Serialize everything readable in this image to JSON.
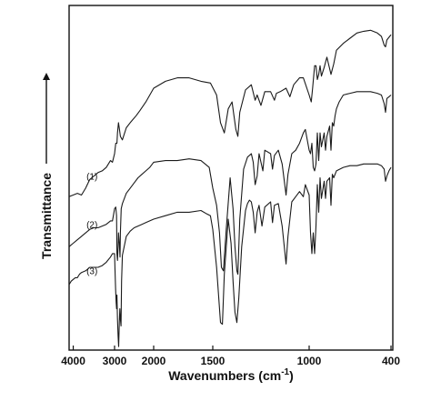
{
  "chart_data": {
    "type": "line",
    "title": "",
    "xlabel": "Wavenumbers (cm",
    "xlabel_superscript": "-1",
    "xlabel_suffix": ")",
    "ylabel": "Transmittance",
    "ylabel_arrow": "up",
    "x_reversed": true,
    "xlim": [
      4100,
      400
    ],
    "xticks": [
      4000,
      3000,
      2000,
      1500,
      1000,
      400
    ],
    "xtick_labels": [
      "4000",
      "3000",
      "2000",
      "1500",
      "1000",
      "400"
    ],
    "y_axis_ticks_labeled": false,
    "grid": false,
    "legend": "none",
    "series": [
      {
        "name": "(1)",
        "color": "#1a1a1a",
        "points": [
          [
            4100,
            0.555
          ],
          [
            3900,
            0.545
          ],
          [
            3800,
            0.55
          ],
          [
            3700,
            0.53
          ],
          [
            3600,
            0.505
          ],
          [
            3500,
            0.495
          ],
          [
            3400,
            0.485
          ],
          [
            3300,
            0.48
          ],
          [
            3200,
            0.47
          ],
          [
            3100,
            0.45
          ],
          [
            3050,
            0.455
          ],
          [
            3000,
            0.43
          ],
          [
            2970,
            0.4
          ],
          [
            2940,
            0.4
          ],
          [
            2925,
            0.37
          ],
          [
            2900,
            0.34
          ],
          [
            2875,
            0.36
          ],
          [
            2850,
            0.38
          ],
          [
            2800,
            0.39
          ],
          [
            2700,
            0.355
          ],
          [
            2600,
            0.34
          ],
          [
            2450,
            0.32
          ],
          [
            2350,
            0.305
          ],
          [
            2200,
            0.28
          ],
          [
            2000,
            0.24
          ],
          [
            1900,
            0.22
          ],
          [
            1800,
            0.21
          ],
          [
            1700,
            0.21
          ],
          [
            1650,
            0.215
          ],
          [
            1600,
            0.22
          ],
          [
            1520,
            0.225
          ],
          [
            1480,
            0.26
          ],
          [
            1460,
            0.34
          ],
          [
            1440,
            0.37
          ],
          [
            1420,
            0.3
          ],
          [
            1400,
            0.28
          ],
          [
            1380,
            0.36
          ],
          [
            1370,
            0.38
          ],
          [
            1360,
            0.31
          ],
          [
            1330,
            0.245
          ],
          [
            1300,
            0.23
          ],
          [
            1280,
            0.275
          ],
          [
            1270,
            0.26
          ],
          [
            1250,
            0.29
          ],
          [
            1230,
            0.25
          ],
          [
            1200,
            0.25
          ],
          [
            1180,
            0.275
          ],
          [
            1170,
            0.255
          ],
          [
            1150,
            0.25
          ],
          [
            1120,
            0.24
          ],
          [
            1100,
            0.265
          ],
          [
            1080,
            0.23
          ],
          [
            1050,
            0.21
          ],
          [
            1030,
            0.21
          ],
          [
            1000,
            0.26
          ],
          [
            985,
            0.28
          ],
          [
            975,
            0.24
          ],
          [
            960,
            0.175
          ],
          [
            950,
            0.175
          ],
          [
            940,
            0.215
          ],
          [
            930,
            0.2
          ],
          [
            920,
            0.175
          ],
          [
            910,
            0.205
          ],
          [
            890,
            0.18
          ],
          [
            870,
            0.15
          ],
          [
            840,
            0.2
          ],
          [
            820,
            0.17
          ],
          [
            800,
            0.13
          ],
          [
            750,
            0.11
          ],
          [
            700,
            0.095
          ],
          [
            650,
            0.08
          ],
          [
            600,
            0.075
          ],
          [
            550,
            0.072
          ],
          [
            500,
            0.08
          ],
          [
            470,
            0.09
          ],
          [
            450,
            0.115
          ],
          [
            440,
            0.12
          ],
          [
            430,
            0.1
          ],
          [
            410,
            0.09
          ],
          [
            400,
            0.085
          ]
        ]
      },
      {
        "name": "(2)",
        "color": "#1a1a1a",
        "points": [
          [
            4100,
            0.7
          ],
          [
            4000,
            0.69
          ],
          [
            3900,
            0.68
          ],
          [
            3800,
            0.67
          ],
          [
            3700,
            0.66
          ],
          [
            3600,
            0.65
          ],
          [
            3500,
            0.645
          ],
          [
            3400,
            0.645
          ],
          [
            3300,
            0.64
          ],
          [
            3200,
            0.635
          ],
          [
            3100,
            0.625
          ],
          [
            3050,
            0.625
          ],
          [
            3000,
            0.59
          ],
          [
            2970,
            0.585
          ],
          [
            2950,
            0.61
          ],
          [
            2940,
            0.72
          ],
          [
            2925,
            0.74
          ],
          [
            2910,
            0.7
          ],
          [
            2900,
            0.66
          ],
          [
            2880,
            0.69
          ],
          [
            2860,
            0.73
          ],
          [
            2850,
            0.66
          ],
          [
            2830,
            0.59
          ],
          [
            2800,
            0.575
          ],
          [
            2700,
            0.545
          ],
          [
            2600,
            0.53
          ],
          [
            2500,
            0.515
          ],
          [
            2400,
            0.5
          ],
          [
            2300,
            0.49
          ],
          [
            2200,
            0.48
          ],
          [
            2100,
            0.47
          ],
          [
            2000,
            0.455
          ],
          [
            1900,
            0.45
          ],
          [
            1800,
            0.45
          ],
          [
            1700,
            0.445
          ],
          [
            1600,
            0.45
          ],
          [
            1530,
            0.47
          ],
          [
            1500,
            0.53
          ],
          [
            1480,
            0.58
          ],
          [
            1465,
            0.66
          ],
          [
            1455,
            0.76
          ],
          [
            1445,
            0.77
          ],
          [
            1430,
            0.65
          ],
          [
            1410,
            0.5
          ],
          [
            1395,
            0.59
          ],
          [
            1385,
            0.7
          ],
          [
            1375,
            0.77
          ],
          [
            1370,
            0.78
          ],
          [
            1360,
            0.62
          ],
          [
            1340,
            0.475
          ],
          [
            1320,
            0.44
          ],
          [
            1300,
            0.43
          ],
          [
            1290,
            0.455
          ],
          [
            1280,
            0.52
          ],
          [
            1270,
            0.495
          ],
          [
            1260,
            0.43
          ],
          [
            1240,
            0.48
          ],
          [
            1230,
            0.42
          ],
          [
            1200,
            0.43
          ],
          [
            1190,
            0.475
          ],
          [
            1180,
            0.435
          ],
          [
            1160,
            0.42
          ],
          [
            1140,
            0.46
          ],
          [
            1120,
            0.55
          ],
          [
            1110,
            0.49
          ],
          [
            1090,
            0.43
          ],
          [
            1070,
            0.42
          ],
          [
            1050,
            0.4
          ],
          [
            1030,
            0.37
          ],
          [
            1020,
            0.36
          ],
          [
            1000,
            0.42
          ],
          [
            990,
            0.43
          ],
          [
            980,
            0.4
          ],
          [
            970,
            0.47
          ],
          [
            960,
            0.48
          ],
          [
            950,
            0.46
          ],
          [
            940,
            0.37
          ],
          [
            930,
            0.45
          ],
          [
            920,
            0.37
          ],
          [
            910,
            0.41
          ],
          [
            890,
            0.37
          ],
          [
            880,
            0.42
          ],
          [
            870,
            0.38
          ],
          [
            850,
            0.35
          ],
          [
            840,
            0.42
          ],
          [
            830,
            0.34
          ],
          [
            820,
            0.35
          ],
          [
            810,
            0.32
          ],
          [
            800,
            0.3
          ],
          [
            780,
            0.28
          ],
          [
            750,
            0.26
          ],
          [
            700,
            0.255
          ],
          [
            650,
            0.25
          ],
          [
            600,
            0.25
          ],
          [
            550,
            0.25
          ],
          [
            500,
            0.255
          ],
          [
            470,
            0.26
          ],
          [
            450,
            0.285
          ],
          [
            440,
            0.31
          ],
          [
            430,
            0.27
          ],
          [
            415,
            0.265
          ],
          [
            400,
            0.26
          ]
        ]
      },
      {
        "name": "(3)",
        "color": "#1a1a1a",
        "points": [
          [
            4100,
            0.81
          ],
          [
            4050,
            0.8
          ],
          [
            4000,
            0.795
          ],
          [
            3950,
            0.79
          ],
          [
            3900,
            0.79
          ],
          [
            3850,
            0.78
          ],
          [
            3800,
            0.775
          ],
          [
            3700,
            0.77
          ],
          [
            3600,
            0.76
          ],
          [
            3500,
            0.76
          ],
          [
            3400,
            0.76
          ],
          [
            3300,
            0.755
          ],
          [
            3200,
            0.745
          ],
          [
            3100,
            0.73
          ],
          [
            3050,
            0.72
          ],
          [
            3000,
            0.72
          ],
          [
            2990,
            0.76
          ],
          [
            2975,
            0.82
          ],
          [
            2960,
            0.86
          ],
          [
            2950,
            0.88
          ],
          [
            2940,
            0.84
          ],
          [
            2925,
            0.91
          ],
          [
            2910,
            0.96
          ],
          [
            2895,
            0.99
          ],
          [
            2880,
            0.92
          ],
          [
            2865,
            0.88
          ],
          [
            2850,
            0.91
          ],
          [
            2835,
            0.93
          ],
          [
            2820,
            0.8
          ],
          [
            2800,
            0.725
          ],
          [
            2700,
            0.67
          ],
          [
            2600,
            0.655
          ],
          [
            2500,
            0.645
          ],
          [
            2400,
            0.64
          ],
          [
            2300,
            0.635
          ],
          [
            2200,
            0.63
          ],
          [
            2100,
            0.625
          ],
          [
            2000,
            0.62
          ],
          [
            1900,
            0.61
          ],
          [
            1800,
            0.6
          ],
          [
            1700,
            0.6
          ],
          [
            1600,
            0.595
          ],
          [
            1550,
            0.605
          ],
          [
            1520,
            0.61
          ],
          [
            1500,
            0.65
          ],
          [
            1480,
            0.76
          ],
          [
            1460,
            0.92
          ],
          [
            1450,
            0.925
          ],
          [
            1440,
            0.78
          ],
          [
            1420,
            0.62
          ],
          [
            1405,
            0.69
          ],
          [
            1395,
            0.8
          ],
          [
            1385,
            0.89
          ],
          [
            1375,
            0.92
          ],
          [
            1365,
            0.85
          ],
          [
            1350,
            0.7
          ],
          [
            1330,
            0.595
          ],
          [
            1320,
            0.575
          ],
          [
            1310,
            0.565
          ],
          [
            1300,
            0.57
          ],
          [
            1290,
            0.6
          ],
          [
            1280,
            0.66
          ],
          [
            1270,
            0.6
          ],
          [
            1260,
            0.58
          ],
          [
            1245,
            0.64
          ],
          [
            1230,
            0.585
          ],
          [
            1200,
            0.57
          ],
          [
            1190,
            0.63
          ],
          [
            1180,
            0.58
          ],
          [
            1160,
            0.575
          ],
          [
            1140,
            0.64
          ],
          [
            1120,
            0.75
          ],
          [
            1110,
            0.67
          ],
          [
            1090,
            0.57
          ],
          [
            1070,
            0.555
          ],
          [
            1050,
            0.54
          ],
          [
            1030,
            0.555
          ],
          [
            1020,
            0.52
          ],
          [
            1000,
            0.55
          ],
          [
            990,
            0.66
          ],
          [
            980,
            0.72
          ],
          [
            970,
            0.66
          ],
          [
            960,
            0.72
          ],
          [
            950,
            0.64
          ],
          [
            940,
            0.52
          ],
          [
            930,
            0.6
          ],
          [
            920,
            0.5
          ],
          [
            910,
            0.56
          ],
          [
            890,
            0.51
          ],
          [
            880,
            0.56
          ],
          [
            870,
            0.51
          ],
          [
            850,
            0.5
          ],
          [
            840,
            0.58
          ],
          [
            830,
            0.49
          ],
          [
            820,
            0.5
          ],
          [
            800,
            0.48
          ],
          [
            750,
            0.47
          ],
          [
            700,
            0.465
          ],
          [
            650,
            0.465
          ],
          [
            600,
            0.46
          ],
          [
            550,
            0.46
          ],
          [
            500,
            0.46
          ],
          [
            470,
            0.465
          ],
          [
            450,
            0.475
          ],
          [
            440,
            0.51
          ],
          [
            430,
            0.495
          ],
          [
            415,
            0.48
          ],
          [
            400,
            0.47
          ]
        ]
      }
    ],
    "curve_labels": [
      {
        "text": "(1)",
        "wavenumber": 3900,
        "y": 0.505
      },
      {
        "text": "(2)",
        "wavenumber": 3900,
        "y": 0.645
      },
      {
        "text": "(3)",
        "wavenumber": 3900,
        "y": 0.78
      }
    ]
  }
}
